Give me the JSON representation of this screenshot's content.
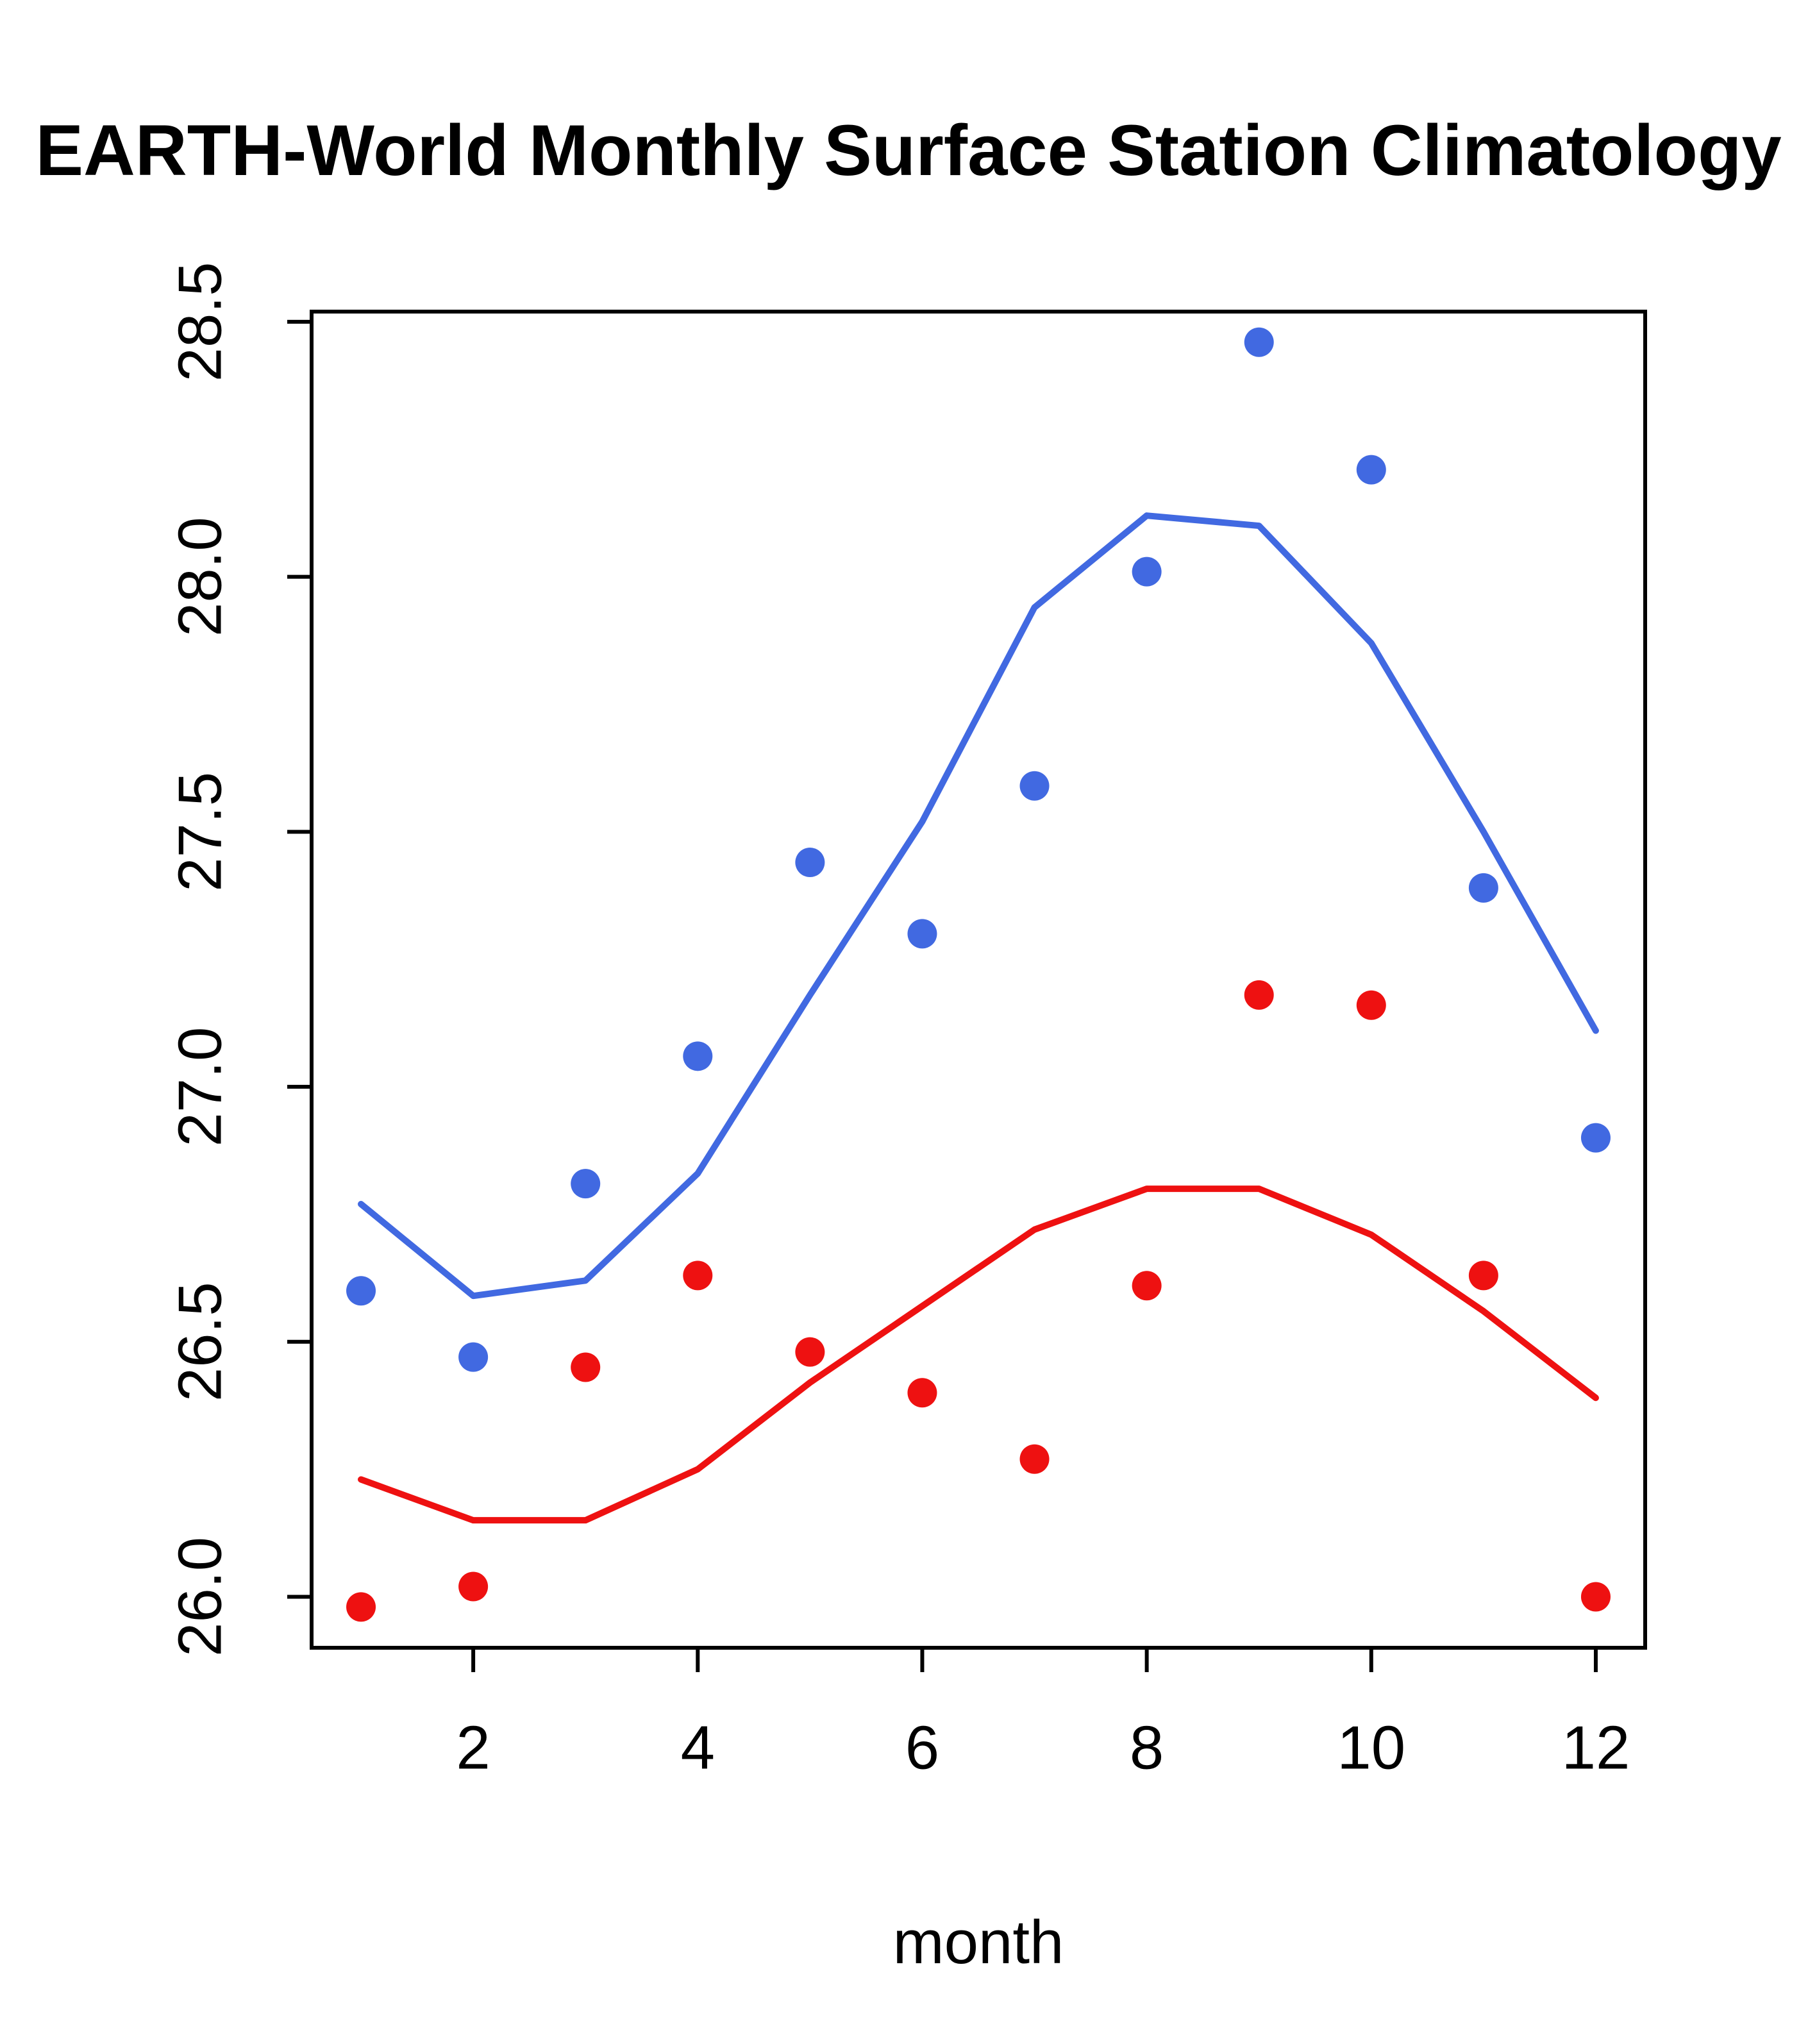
{
  "chart_data": {
    "type": "scatter",
    "title": "EARTH-World Monthly Surface Station Climatology",
    "xlabel": "month",
    "ylabel": "",
    "grid": false,
    "legend": null,
    "x": [
      1,
      2,
      3,
      4,
      5,
      6,
      7,
      8,
      9,
      10,
      11,
      12
    ],
    "xlim": [
      0.56,
      12.44
    ],
    "ylim": [
      25.9,
      28.52
    ],
    "x_ticks": {
      "values": [
        2,
        4,
        6,
        8,
        10,
        12
      ],
      "labels": [
        "2",
        "4",
        "6",
        "8",
        "10",
        "12"
      ]
    },
    "y_ticks": {
      "values": [
        26.0,
        26.5,
        27.0,
        27.5,
        28.0,
        28.5
      ],
      "labels": [
        "26.0",
        "26.5",
        "27.0",
        "27.5",
        "28.0",
        "28.5"
      ]
    },
    "series": [
      {
        "name": "blue-smooth-line",
        "kind": "line",
        "color": "#4169E1",
        "values": [
          26.77,
          26.59,
          26.62,
          26.83,
          27.18,
          27.52,
          27.94,
          28.12,
          28.1,
          27.87,
          27.5,
          27.11
        ]
      },
      {
        "name": "red-smooth-line",
        "kind": "line",
        "color": "#EE1111",
        "values": [
          26.23,
          26.15,
          26.15,
          26.25,
          26.42,
          26.57,
          26.72,
          26.8,
          26.8,
          26.71,
          26.56,
          26.39
        ]
      },
      {
        "name": "blue-points",
        "kind": "points",
        "color": "#4169E1",
        "values": [
          26.6,
          26.47,
          26.81,
          27.06,
          27.44,
          27.3,
          27.59,
          28.01,
          28.46,
          28.21,
          27.39,
          26.9
        ]
      },
      {
        "name": "red-points",
        "kind": "points",
        "color": "#EE1111",
        "values": [
          25.98,
          26.02,
          26.45,
          26.63,
          26.48,
          26.4,
          26.27,
          26.61,
          27.18,
          27.16,
          26.63,
          26.0
        ]
      }
    ]
  }
}
